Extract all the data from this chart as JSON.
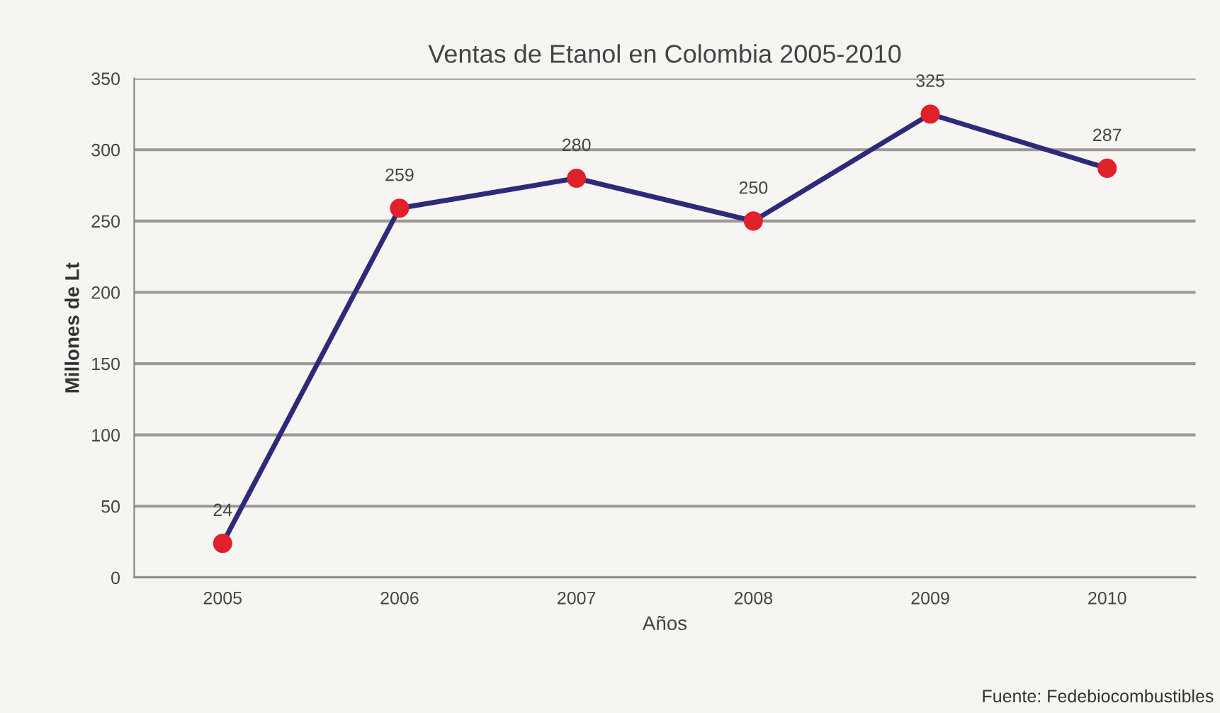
{
  "chart_data": {
    "type": "line",
    "title": "Ventas de Etanol en Colombia 2005-2010",
    "xlabel": "Años",
    "ylabel": "Millones de Lt",
    "categories": [
      "2005",
      "2006",
      "2007",
      "2008",
      "2009",
      "2010"
    ],
    "series": [
      {
        "color": "#2e2a7a",
        "values": [
          24,
          259,
          280,
          250,
          325,
          287
        ]
      }
    ],
    "marker": "circle",
    "line_style": "solid",
    "ylim": [
      0,
      350
    ],
    "yticks": [
      0,
      50,
      100,
      150,
      200,
      250,
      300,
      350
    ],
    "grid": "y",
    "data_labels": true,
    "annotations": [
      "Fuente: Fedebiocombustibles"
    ]
  }
}
